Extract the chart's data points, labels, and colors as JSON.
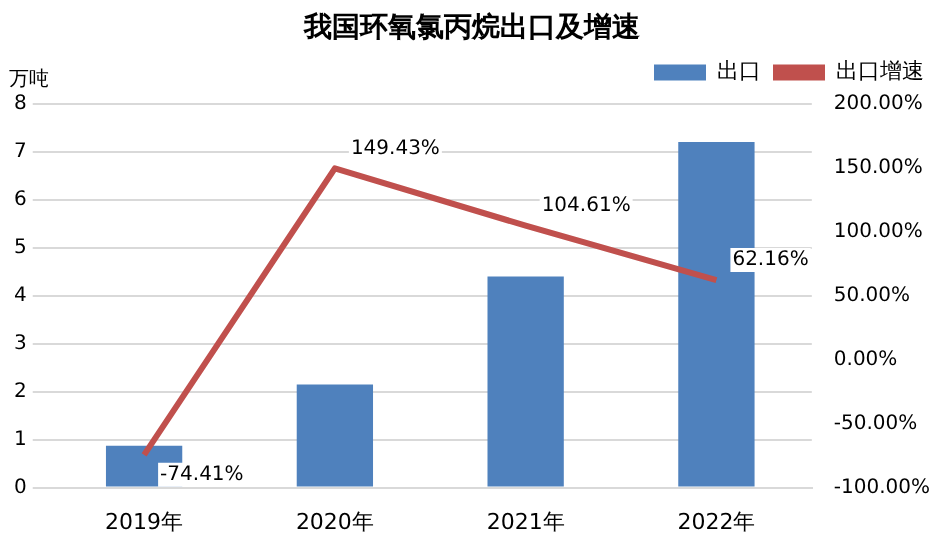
{
  "chart_data": {
    "type": "bar",
    "title": "我国环氧氯丙烷出口及增速",
    "ylabel": "万吨",
    "categories": [
      "2019年",
      "2020年",
      "2021年",
      "2022年"
    ],
    "series": [
      {
        "name": "出口",
        "color": "#4f81bd",
        "values": [
          0.87,
          2.15,
          4.4,
          7.2
        ]
      },
      {
        "name": "出口增速",
        "type": "line",
        "axis": "y2",
        "color": "#c0504d",
        "values": [
          -74.41,
          149.43,
          104.61,
          62.16
        ],
        "value_labels": [
          "-74.41%",
          "149.43%",
          "104.61%",
          "62.16%"
        ]
      }
    ],
    "ylim": [
      0,
      8
    ],
    "yticks": [
      0,
      1,
      2,
      3,
      4,
      5,
      6,
      7,
      8
    ],
    "y2lim": [
      -100,
      200
    ],
    "y2ticks": [
      {
        "value": -100,
        "label": "-100.00%"
      },
      {
        "value": -50,
        "label": "-50.00%"
      },
      {
        "value": 0,
        "label": "0.00%"
      },
      {
        "value": 50,
        "label": "50.00%"
      },
      {
        "value": 100,
        "label": "100.00%"
      },
      {
        "value": 150,
        "label": "150.00%"
      },
      {
        "value": 200,
        "label": "200.00%"
      }
    ],
    "grid": "y",
    "legend": "top right",
    "marker": "none"
  }
}
